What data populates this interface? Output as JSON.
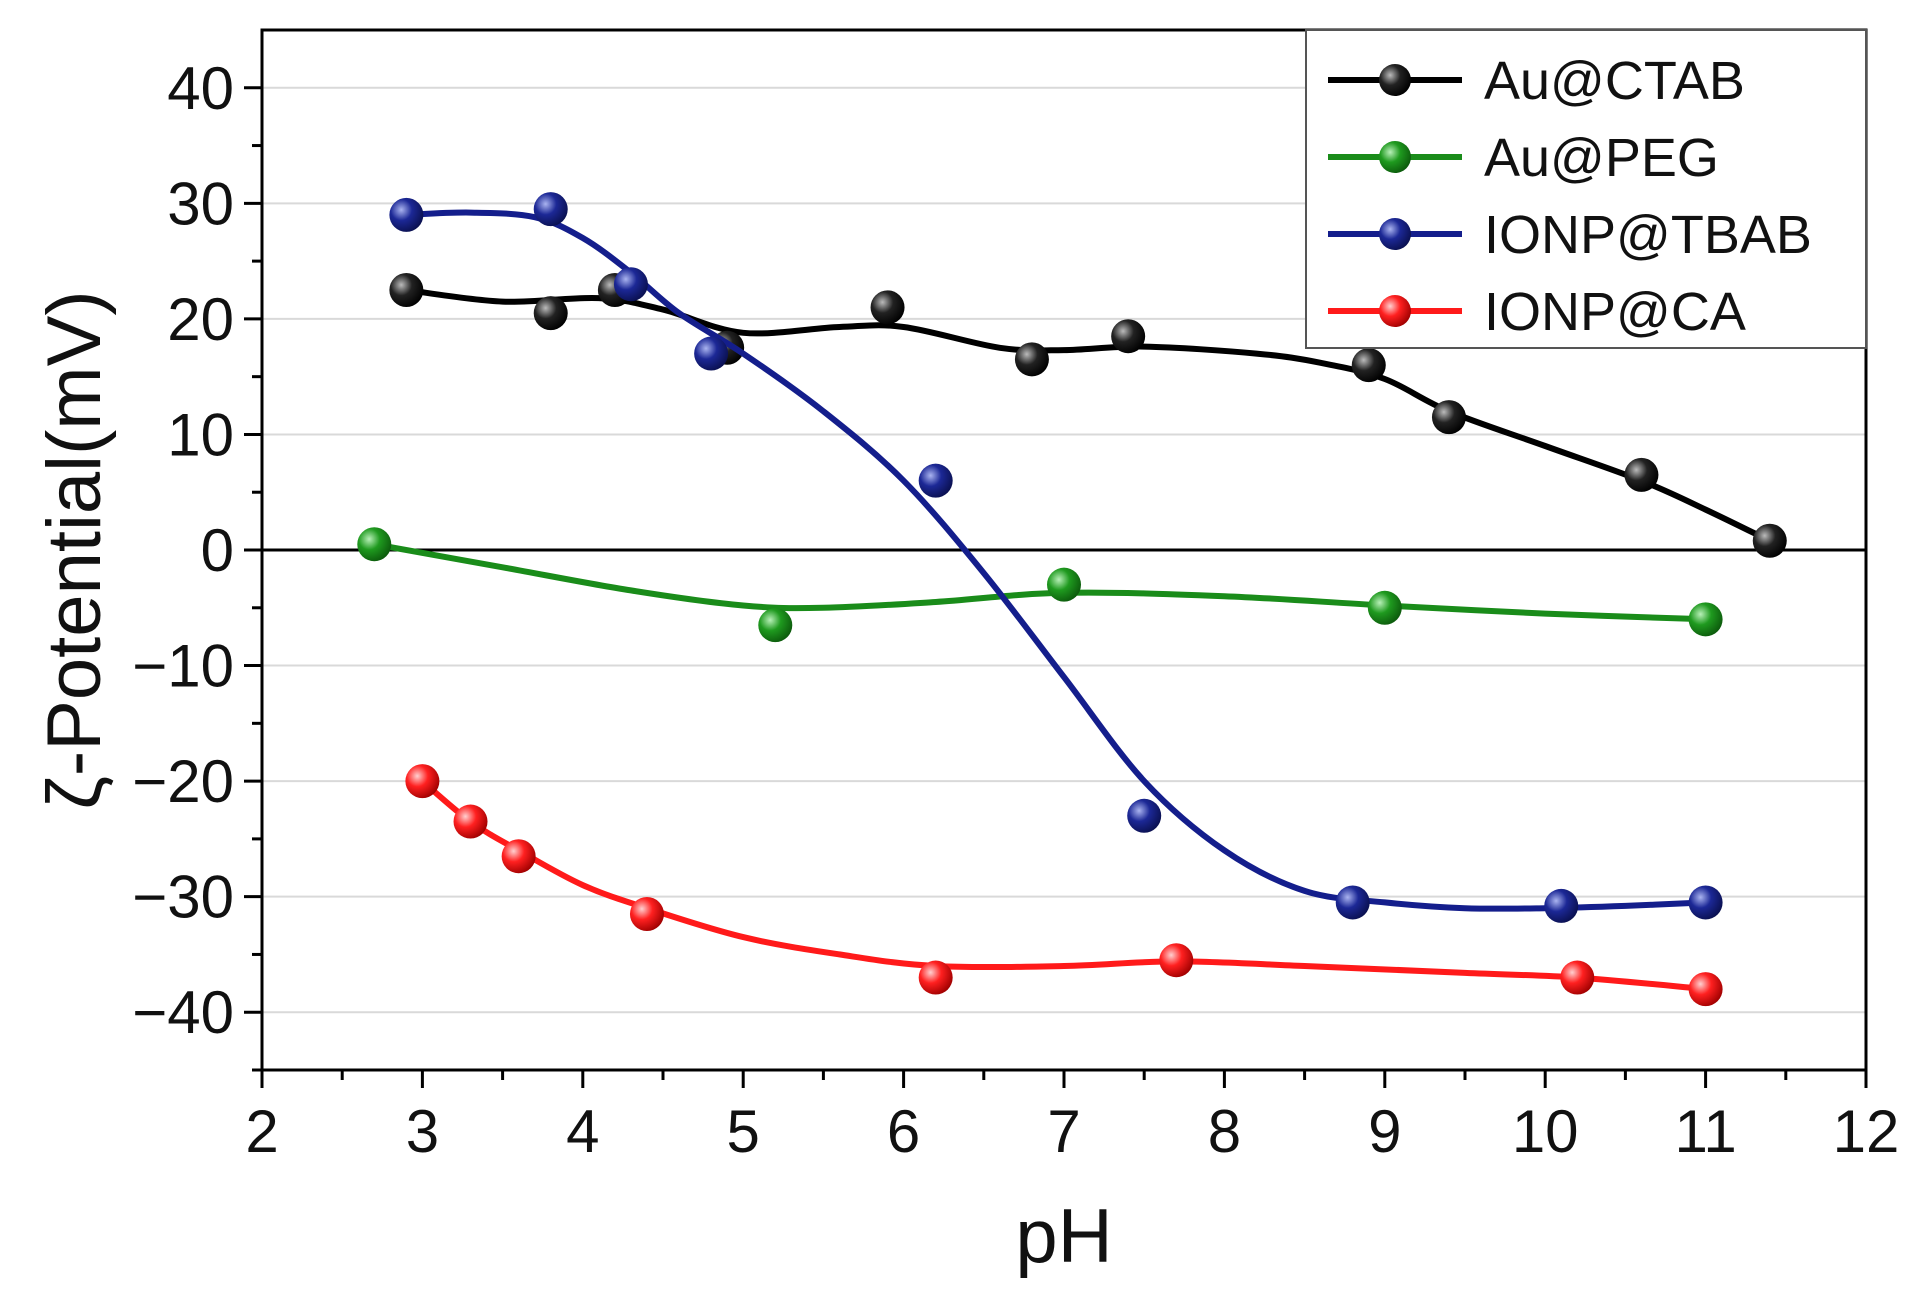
{
  "chart_data": {
    "type": "line",
    "title": "",
    "xlabel": "pH",
    "ylabel": "ζ-Potential(mV)",
    "xlim": [
      2,
      12
    ],
    "ylim": [
      -45,
      45
    ],
    "x_ticks": [
      2,
      3,
      4,
      5,
      6,
      7,
      8,
      9,
      10,
      11,
      12
    ],
    "y_ticks": [
      -40,
      -30,
      -20,
      -10,
      0,
      10,
      20,
      30,
      40
    ],
    "grid": true,
    "legend_position": "top-right",
    "series": [
      {
        "name": "Au@CTAB",
        "color": "#000000",
        "points": [
          [
            2.9,
            22.5
          ],
          [
            3.8,
            20.5
          ],
          [
            4.2,
            22.5
          ],
          [
            4.9,
            17.5
          ],
          [
            5.9,
            21
          ],
          [
            6.8,
            16.5
          ],
          [
            7.4,
            18.5
          ],
          [
            8.9,
            16
          ],
          [
            9.4,
            11.5
          ],
          [
            10.6,
            6.5
          ],
          [
            11.4,
            0.8
          ]
        ],
        "curve": [
          [
            2.9,
            22.5
          ],
          [
            3.5,
            21.5
          ],
          [
            4.1,
            21.8
          ],
          [
            4.5,
            20.8
          ],
          [
            5,
            18.8
          ],
          [
            5.6,
            19.3
          ],
          [
            6,
            19.3
          ],
          [
            6.6,
            17.5
          ],
          [
            7,
            17.3
          ],
          [
            7.5,
            17.6
          ],
          [
            8.2,
            17
          ],
          [
            8.6,
            16.2
          ],
          [
            9,
            14.8
          ],
          [
            9.4,
            12
          ],
          [
            10,
            9
          ],
          [
            10.6,
            6
          ],
          [
            11,
            3.5
          ],
          [
            11.4,
            0.8
          ]
        ]
      },
      {
        "name": "Au@PEG",
        "color": "#1a8c1a",
        "points": [
          [
            2.7,
            0.5
          ],
          [
            5.2,
            -6.5
          ],
          [
            7,
            -3
          ],
          [
            9,
            -5
          ],
          [
            11,
            -6
          ]
        ],
        "curve": [
          [
            2.7,
            0.5
          ],
          [
            3.5,
            -1.5
          ],
          [
            4.3,
            -3.5
          ],
          [
            5,
            -4.8
          ],
          [
            5.5,
            -5
          ],
          [
            6.2,
            -4.5
          ],
          [
            7,
            -3.7
          ],
          [
            8,
            -4
          ],
          [
            9,
            -4.8
          ],
          [
            10,
            -5.5
          ],
          [
            11,
            -6
          ]
        ]
      },
      {
        "name": "IONP@TBAB",
        "color": "#141e8c",
        "points": [
          [
            2.9,
            29
          ],
          [
            3.8,
            29.5
          ],
          [
            4.3,
            23
          ],
          [
            4.8,
            17
          ],
          [
            6.2,
            6
          ],
          [
            7.5,
            -23
          ],
          [
            8.8,
            -30.5
          ],
          [
            10.1,
            -30.8
          ],
          [
            11,
            -30.5
          ]
        ],
        "curve": [
          [
            2.9,
            29
          ],
          [
            3.3,
            29.2
          ],
          [
            3.7,
            28.8
          ],
          [
            4,
            27
          ],
          [
            4.3,
            24
          ],
          [
            4.6,
            20.5
          ],
          [
            5,
            17
          ],
          [
            5.5,
            12
          ],
          [
            6,
            6
          ],
          [
            6.5,
            -2
          ],
          [
            7,
            -11
          ],
          [
            7.5,
            -20
          ],
          [
            8,
            -26
          ],
          [
            8.5,
            -29.5
          ],
          [
            9,
            -30.5
          ],
          [
            9.5,
            -31
          ],
          [
            10,
            -31
          ],
          [
            10.5,
            -30.8
          ],
          [
            11,
            -30.5
          ]
        ]
      },
      {
        "name": "IONP@CA",
        "color": "#ff1a1a",
        "points": [
          [
            3,
            -20
          ],
          [
            3.3,
            -23.5
          ],
          [
            3.6,
            -26.5
          ],
          [
            4.4,
            -31.5
          ],
          [
            6.2,
            -37
          ],
          [
            7.7,
            -35.5
          ],
          [
            10.2,
            -37
          ],
          [
            11,
            -38
          ]
        ],
        "curve": [
          [
            3,
            -20
          ],
          [
            3.3,
            -23.5
          ],
          [
            3.6,
            -26
          ],
          [
            4,
            -29
          ],
          [
            4.4,
            -31
          ],
          [
            5,
            -33.5
          ],
          [
            5.6,
            -35
          ],
          [
            6.2,
            -36
          ],
          [
            7,
            -36
          ],
          [
            7.7,
            -35.6
          ],
          [
            8.5,
            -36
          ],
          [
            9.5,
            -36.6
          ],
          [
            10.2,
            -37
          ],
          [
            11,
            -38
          ]
        ]
      }
    ]
  }
}
